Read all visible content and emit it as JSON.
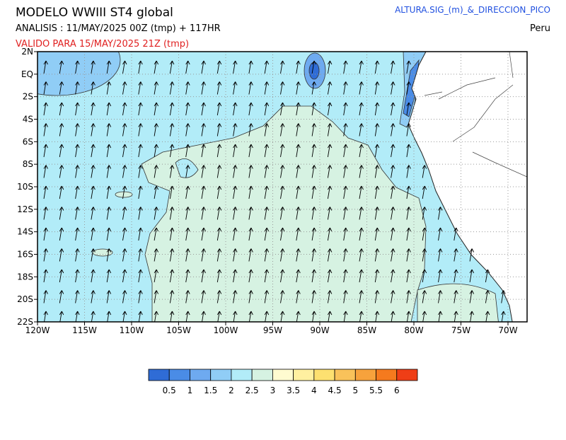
{
  "header": {
    "title": "MODELO  WWIII  ST4  global",
    "analysis": "ANALISIS : 11/MAY/2025 00Z  (tmp) + 117HR",
    "valid": "VALIDO PARA  15/MAY/2025 21Z  (tmp)",
    "variable": "ALTURA.SIG_(m)_&_DIRECCION_PICO",
    "region": "Peru"
  },
  "map": {
    "lat_labels": [
      "2N",
      "EQ",
      "2S",
      "4S",
      "6S",
      "8S",
      "10S",
      "12S",
      "14S",
      "16S",
      "18S",
      "20S",
      "22S"
    ],
    "lon_labels": [
      "120W",
      "115W",
      "110W",
      "105W",
      "100W",
      "95W",
      "90W",
      "85W",
      "80W",
      "75W",
      "70W"
    ]
  },
  "colorbar": {
    "colors": [
      "#2f6cd6",
      "#4a8ce6",
      "#6eaaf0",
      "#90cdf6",
      "#b2ecf8",
      "#d6f2e2",
      "#fffbd0",
      "#fff0a0",
      "#fde070",
      "#f9c25a",
      "#f7a23c",
      "#f57a1e",
      "#ef3e16"
    ],
    "labels": [
      "0.5",
      "1",
      "1.5",
      "2",
      "2.5",
      "3",
      "3.5",
      "4",
      "4.5",
      "5",
      "5.5",
      "6"
    ]
  }
}
